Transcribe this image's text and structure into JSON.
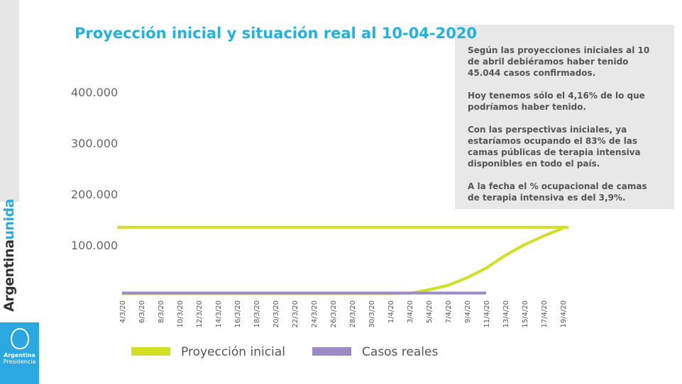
{
  "brand": {
    "first": "Argentina",
    "second": "unida",
    "logo_title": "Argentina",
    "logo_subtitle": "Presidencia"
  },
  "panel": {
    "paragraphs": [
      "Según las proyecciones iniciales al 10 de abril debiéramos haber tenido 45.044 casos confirmados.",
      "Hoy tenemos sólo el 4,16% de lo que podríamos haber tenido.",
      "Con las perspectivas iniciales, ya estaríamos ocupando el 83% de las camas públicas de terapia intensiva disponibles en todo el país.",
      "A la fecha el % ocupacional de camas de terapia intensiva es del 3,9%."
    ]
  },
  "chart_data": {
    "type": "line",
    "title": "Proyección inicial y situación real al 10-04-2020",
    "categories": [
      "4/3/20",
      "6/3/20",
      "8/3/20",
      "10/3/20",
      "12/3/20",
      "14/3/20",
      "16/3/20",
      "18/3/20",
      "20/3/20",
      "22/3/20",
      "24/3/20",
      "26/3/20",
      "28/3/20",
      "30/3/20",
      "1/4/20",
      "3/4/20",
      "5/4/20",
      "7/4/20",
      "9/4/20",
      "11/4/20",
      "13/4/20",
      "15/4/20",
      "17/4/20",
      "19/4/20"
    ],
    "series": [
      {
        "name": "Proyección inicial",
        "color": "#d3df22",
        "values": [
          5000,
          5000,
          5000,
          5000,
          5000,
          5000,
          5000,
          5000,
          5000,
          5000,
          5000,
          5000,
          5000,
          5000,
          5000,
          5500,
          12500,
          21000,
          36000,
          55000,
          80000,
          101000,
          118000,
          133000
        ]
      },
      {
        "name": "Casos reales",
        "color": "#9b8cc6",
        "values": [
          6000,
          6000,
          6000,
          6000,
          6000,
          6000,
          6000,
          6000,
          6000,
          6000,
          6000,
          6000,
          6000,
          6000,
          6000,
          6000,
          6000,
          6000,
          6000,
          6000,
          null,
          null,
          null,
          null
        ]
      }
    ],
    "reference_line": {
      "value": 135000,
      "color": "#d3df22"
    },
    "ylim": [
      0,
      400000
    ],
    "yticks": [
      {
        "value": 100000,
        "label": "100.000"
      },
      {
        "value": 200000,
        "label": "200.000"
      },
      {
        "value": 300000,
        "label": "300.000"
      },
      {
        "value": 400000,
        "label": "400.000"
      }
    ],
    "grid": false
  }
}
